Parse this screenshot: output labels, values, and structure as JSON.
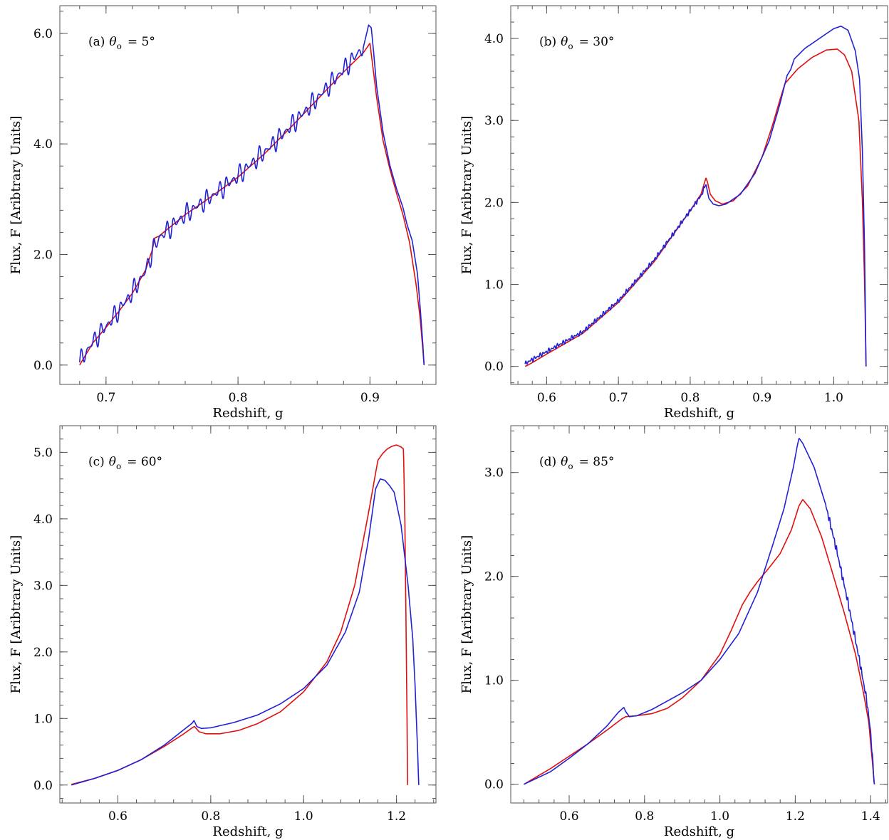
{
  "chart_data": [
    {
      "type": "line",
      "panel": "a",
      "label_prefix": "(a)",
      "label_eq": "= 5°",
      "xlabel": "Redshift, g",
      "ylabel": "Flux, F [Aribtrary Units]",
      "xlim": [
        0.665,
        0.95
      ],
      "ylim": [
        -0.35,
        6.5
      ],
      "xticks": [
        0.7,
        0.8,
        0.9
      ],
      "xtick_labels": [
        "0.7",
        "0.8",
        "0.9"
      ],
      "yticks": [
        0,
        2,
        4,
        6
      ],
      "ytick_labels": [
        "0.0",
        "2.0",
        "4.0",
        "6.0"
      ],
      "series": [
        {
          "color": "#e01010",
          "x": [
            0.68,
            0.69,
            0.7,
            0.71,
            0.72,
            0.73,
            0.735,
            0.737,
            0.74,
            0.76,
            0.78,
            0.8,
            0.82,
            0.84,
            0.86,
            0.88,
            0.895,
            0.9,
            0.905,
            0.91,
            0.915,
            0.92,
            0.925,
            0.93,
            0.935,
            0.938,
            0.94,
            0.941
          ],
          "y": [
            0.0,
            0.4,
            0.68,
            0.98,
            1.3,
            1.72,
            2.08,
            2.3,
            2.33,
            2.72,
            3.05,
            3.4,
            3.82,
            4.3,
            4.8,
            5.3,
            5.65,
            5.82,
            4.85,
            4.05,
            3.55,
            3.12,
            2.72,
            2.22,
            1.45,
            0.85,
            0.3,
            0.0
          ]
        },
        {
          "color": "#2222d4",
          "wiggle": 0.2,
          "wiggle_period": 0.005,
          "wiggle_xmax": 0.895,
          "x": [
            0.68,
            0.69,
            0.7,
            0.71,
            0.72,
            0.73,
            0.735,
            0.74,
            0.76,
            0.78,
            0.8,
            0.82,
            0.84,
            0.86,
            0.88,
            0.895,
            0.899,
            0.901,
            0.903,
            0.905,
            0.91,
            0.915,
            0.92,
            0.925,
            0.928,
            0.932,
            0.936,
            0.938,
            0.94,
            0.941
          ],
          "y": [
            0.05,
            0.42,
            0.7,
            1.0,
            1.32,
            1.7,
            2.05,
            2.3,
            2.72,
            3.05,
            3.42,
            3.85,
            4.32,
            4.82,
            5.35,
            5.75,
            6.15,
            6.1,
            5.6,
            5.05,
            4.2,
            3.62,
            3.2,
            2.85,
            2.55,
            2.25,
            1.65,
            1.05,
            0.4,
            0.0
          ]
        }
      ]
    },
    {
      "type": "line",
      "panel": "b",
      "label_prefix": "(b)",
      "label_eq": "= 30°",
      "xlabel": "Redshift, g",
      "ylabel": "Flux, F [Aribtrary Units]",
      "xlim": [
        0.55,
        1.075
      ],
      "ylim": [
        -0.22,
        4.4
      ],
      "xticks": [
        0.6,
        0.7,
        0.8,
        0.9,
        1.0
      ],
      "xtick_labels": [
        "0.6",
        "0.7",
        "0.8",
        "0.9",
        "1.0"
      ],
      "yticks": [
        0,
        1,
        2,
        3,
        4
      ],
      "ytick_labels": [
        "0.0",
        "1.0",
        "2.0",
        "3.0",
        "4.0"
      ],
      "series": [
        {
          "color": "#e01010",
          "x": [
            0.57,
            0.575,
            0.6,
            0.65,
            0.7,
            0.75,
            0.8,
            0.815,
            0.822,
            0.824,
            0.828,
            0.835,
            0.845,
            0.86,
            0.88,
            0.9,
            0.915,
            0.925,
            0.932,
            0.95,
            0.97,
            0.99,
            1.005,
            1.015,
            1.025,
            1.035,
            1.04,
            1.043,
            1.045
          ],
          "y": [
            0.0,
            0.02,
            0.15,
            0.4,
            0.78,
            1.28,
            1.9,
            2.1,
            2.3,
            2.25,
            2.1,
            2.02,
            1.98,
            2.02,
            2.2,
            2.55,
            2.95,
            3.25,
            3.45,
            3.63,
            3.77,
            3.86,
            3.87,
            3.8,
            3.6,
            3.0,
            2.0,
            1.0,
            0.0
          ]
        },
        {
          "color": "#2222d4",
          "wiggle": 0.03,
          "wiggle_period": 0.004,
          "wiggle_xmax": 0.82,
          "x": [
            0.57,
            0.575,
            0.6,
            0.65,
            0.7,
            0.75,
            0.8,
            0.815,
            0.822,
            0.826,
            0.832,
            0.84,
            0.85,
            0.87,
            0.89,
            0.91,
            0.925,
            0.935,
            0.94,
            0.945,
            0.96,
            0.98,
            1.0,
            1.01,
            1.02,
            1.03,
            1.036,
            1.04,
            1.043,
            1.045
          ],
          "y": [
            0.03,
            0.06,
            0.18,
            0.42,
            0.8,
            1.3,
            1.9,
            2.08,
            2.22,
            2.05,
            1.98,
            1.96,
            1.98,
            2.1,
            2.35,
            2.75,
            3.2,
            3.55,
            3.62,
            3.75,
            3.88,
            4.0,
            4.12,
            4.15,
            4.1,
            3.85,
            3.5,
            2.6,
            1.4,
            0.0
          ]
        }
      ]
    },
    {
      "type": "line",
      "panel": "c",
      "label_prefix": "(c)",
      "label_eq": "= 60°",
      "xlabel": "Redshift, g",
      "ylabel": "Flux, F [Aribtrary Units]",
      "xlim": [
        0.475,
        1.285
      ],
      "ylim": [
        -0.27,
        5.4
      ],
      "xticks": [
        0.6,
        0.8,
        1.0,
        1.2
      ],
      "xtick_labels": [
        "0.6",
        "0.8",
        "1.0",
        "1.2"
      ],
      "yticks": [
        0,
        1,
        2,
        3,
        4,
        5
      ],
      "ytick_labels": [
        "0.0",
        "1.0",
        "2.0",
        "3.0",
        "4.0",
        "5.0"
      ],
      "series": [
        {
          "color": "#e01010",
          "x": [
            0.5,
            0.55,
            0.6,
            0.65,
            0.7,
            0.74,
            0.76,
            0.765,
            0.775,
            0.79,
            0.82,
            0.86,
            0.9,
            0.95,
            1.0,
            1.05,
            1.08,
            1.11,
            1.14,
            1.16,
            1.17,
            1.18,
            1.19,
            1.2,
            1.21,
            1.215,
            1.218,
            1.222,
            1.224
          ],
          "y": [
            0.01,
            0.1,
            0.22,
            0.38,
            0.58,
            0.76,
            0.86,
            0.88,
            0.8,
            0.77,
            0.77,
            0.82,
            0.92,
            1.1,
            1.4,
            1.85,
            2.3,
            3.0,
            4.1,
            4.88,
            4.98,
            5.05,
            5.09,
            5.11,
            5.08,
            5.05,
            4.0,
            1.5,
            0.0
          ]
        },
        {
          "color": "#2222d4",
          "x": [
            0.5,
            0.55,
            0.6,
            0.65,
            0.7,
            0.74,
            0.76,
            0.764,
            0.77,
            0.78,
            0.8,
            0.85,
            0.9,
            0.95,
            1.0,
            1.05,
            1.09,
            1.12,
            1.14,
            1.155,
            1.165,
            1.175,
            1.185,
            1.195,
            1.21,
            1.225,
            1.235,
            1.24,
            1.245,
            1.248
          ],
          "y": [
            0.0,
            0.1,
            0.22,
            0.38,
            0.6,
            0.82,
            0.93,
            0.97,
            0.88,
            0.85,
            0.86,
            0.94,
            1.05,
            1.22,
            1.45,
            1.8,
            2.3,
            2.9,
            3.7,
            4.45,
            4.6,
            4.58,
            4.5,
            4.4,
            3.9,
            3.0,
            2.2,
            1.5,
            0.6,
            0.0
          ]
        }
      ]
    },
    {
      "type": "line",
      "panel": "d",
      "label_prefix": "(d)",
      "label_eq": "= 85°",
      "xlabel": "Redshift, g",
      "ylabel": "Flux, F [Aribtrary Units]",
      "xlim": [
        0.445,
        1.445
      ],
      "ylim": [
        -0.18,
        3.45
      ],
      "xticks": [
        0.6,
        0.8,
        1.0,
        1.2,
        1.4
      ],
      "xtick_labels": [
        "0.6",
        "0.8",
        "1.0",
        "1.2",
        "1.4"
      ],
      "yticks": [
        0,
        1,
        2,
        3
      ],
      "ytick_labels": [
        "0.0",
        "1.0",
        "2.0",
        "3.0"
      ],
      "series": [
        {
          "color": "#e01010",
          "x": [
            0.48,
            0.55,
            0.6,
            0.65,
            0.7,
            0.74,
            0.75,
            0.78,
            0.82,
            0.86,
            0.9,
            0.95,
            1.0,
            1.03,
            1.06,
            1.08,
            1.1,
            1.13,
            1.16,
            1.19,
            1.21,
            1.22,
            1.24,
            1.27,
            1.3,
            1.33,
            1.36,
            1.38,
            1.395,
            1.405,
            1.41
          ],
          "y": [
            0.0,
            0.15,
            0.27,
            0.39,
            0.52,
            0.63,
            0.65,
            0.66,
            0.68,
            0.73,
            0.83,
            1.0,
            1.25,
            1.48,
            1.73,
            1.85,
            1.95,
            2.08,
            2.22,
            2.45,
            2.68,
            2.74,
            2.65,
            2.38,
            2.02,
            1.65,
            1.25,
            0.9,
            0.6,
            0.2,
            0.0
          ]
        },
        {
          "color": "#2222d4",
          "wiggle": 0.04,
          "wiggle_period": 0.006,
          "wiggle_xmin": 1.28,
          "x": [
            0.48,
            0.55,
            0.6,
            0.65,
            0.7,
            0.73,
            0.745,
            0.75,
            0.76,
            0.78,
            0.82,
            0.86,
            0.9,
            0.95,
            1.0,
            1.05,
            1.1,
            1.14,
            1.17,
            1.195,
            1.205,
            1.21,
            1.22,
            1.25,
            1.28,
            1.31,
            1.34,
            1.37,
            1.39,
            1.4,
            1.405,
            1.41
          ],
          "y": [
            0.0,
            0.12,
            0.25,
            0.39,
            0.56,
            0.69,
            0.74,
            0.7,
            0.65,
            0.66,
            0.72,
            0.8,
            0.88,
            1.0,
            1.2,
            1.45,
            1.85,
            2.3,
            2.65,
            3.05,
            3.25,
            3.33,
            3.28,
            3.05,
            2.7,
            2.25,
            1.75,
            1.2,
            0.8,
            0.5,
            0.25,
            0.0
          ]
        }
      ]
    }
  ]
}
